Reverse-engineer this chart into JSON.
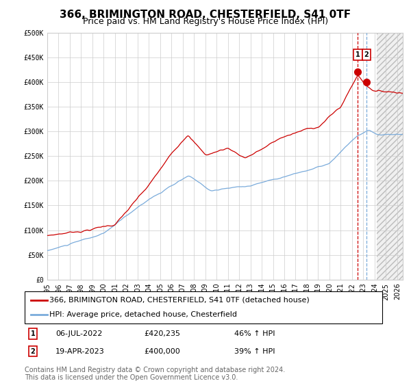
{
  "title": "366, BRIMINGTON ROAD, CHESTERFIELD, S41 0TF",
  "subtitle": "Price paid vs. HM Land Registry's House Price Index (HPI)",
  "ylim": [
    0,
    500000
  ],
  "yticks": [
    0,
    50000,
    100000,
    150000,
    200000,
    250000,
    300000,
    350000,
    400000,
    450000,
    500000
  ],
  "ytick_labels": [
    "£0",
    "£50K",
    "£100K",
    "£150K",
    "£200K",
    "£250K",
    "£300K",
    "£350K",
    "£400K",
    "£450K",
    "£500K"
  ],
  "xlim_start": 1995.0,
  "xlim_end": 2026.5,
  "xticks": [
    1995,
    1996,
    1997,
    1998,
    1999,
    2000,
    2001,
    2002,
    2003,
    2004,
    2005,
    2006,
    2007,
    2008,
    2009,
    2010,
    2011,
    2012,
    2013,
    2014,
    2015,
    2016,
    2017,
    2018,
    2019,
    2020,
    2021,
    2022,
    2023,
    2024,
    2025,
    2026
  ],
  "grid_color": "#cccccc",
  "background_color": "#ffffff",
  "line1_color": "#cc0000",
  "line2_color": "#7aabdb",
  "line1_label": "366, BRIMINGTON ROAD, CHESTERFIELD, S41 0TF (detached house)",
  "line2_label": "HPI: Average price, detached house, Chesterfield",
  "transaction1_date": "06-JUL-2022",
  "transaction1_x": 2022.51,
  "transaction1_price": 420235,
  "transaction1_pct": "46%",
  "transaction2_date": "19-APR-2023",
  "transaction2_x": 2023.29,
  "transaction2_price": 400000,
  "transaction2_pct": "39%",
  "future_start": 2024.17,
  "hatch_color": "#bbbbbb",
  "footer": "Contains HM Land Registry data © Crown copyright and database right 2024.\nThis data is licensed under the Open Government Licence v3.0.",
  "title_fontsize": 11,
  "subtitle_fontsize": 9,
  "tick_fontsize": 7,
  "legend_fontsize": 8,
  "footer_fontsize": 7,
  "annot_fontsize": 8
}
